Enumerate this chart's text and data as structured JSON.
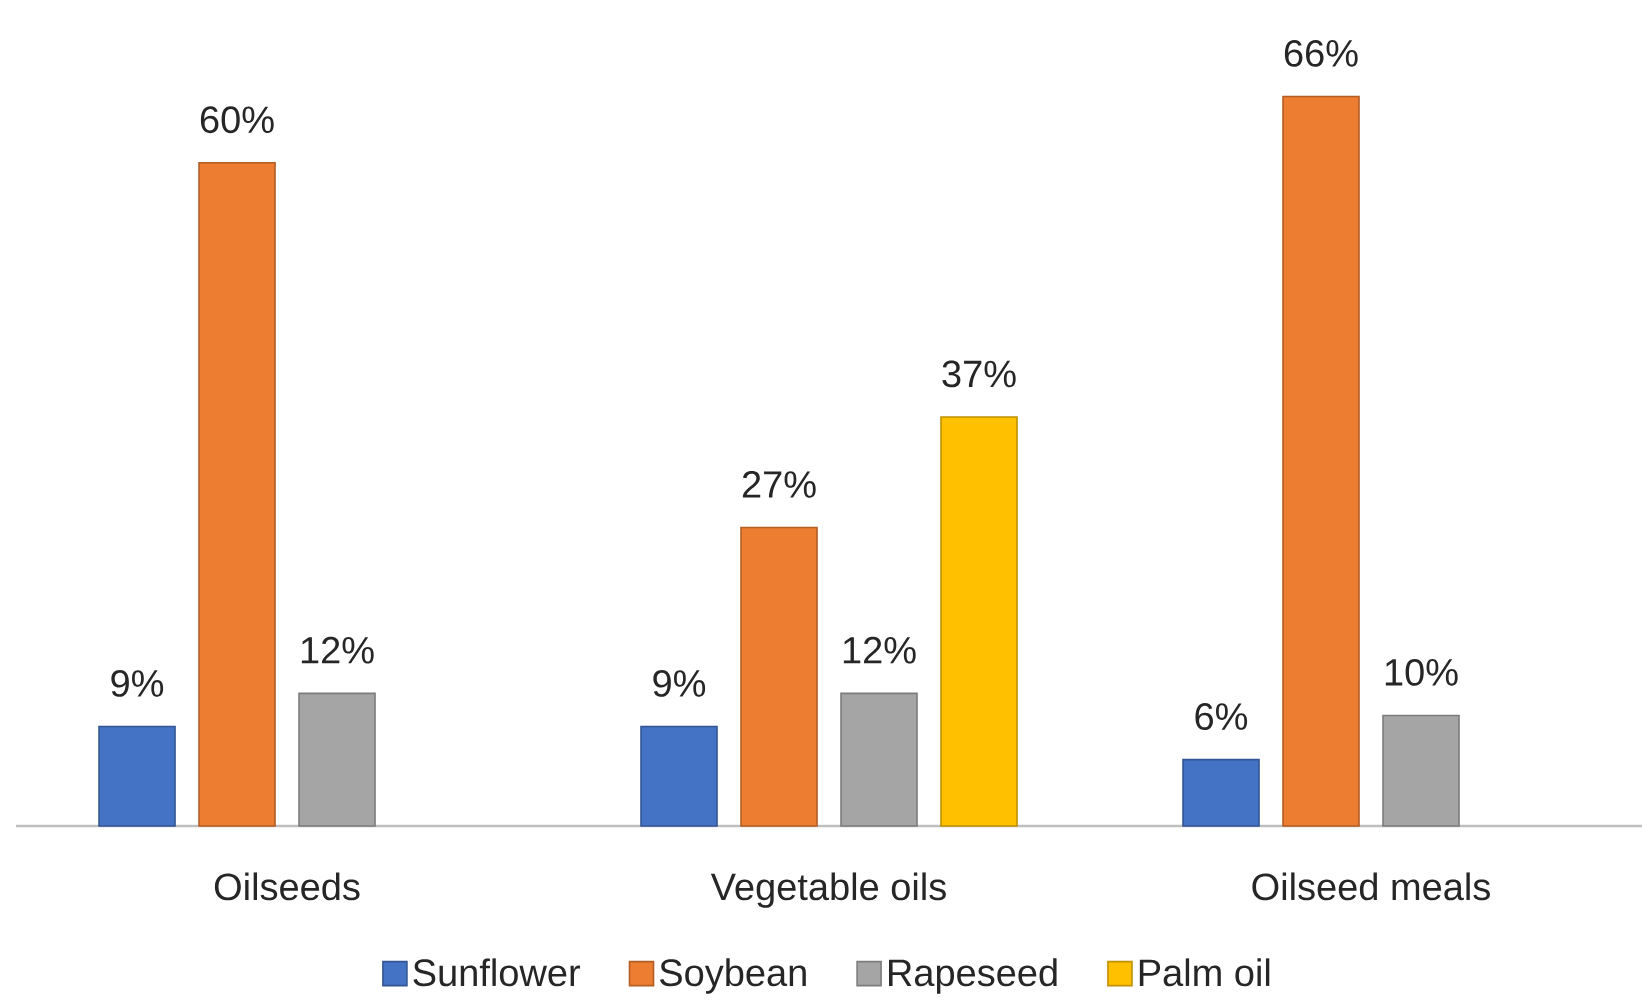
{
  "chart_data": {
    "type": "bar",
    "categories": [
      "Oilseeds",
      "Vegetable oils",
      "Oilseed meals"
    ],
    "series": [
      {
        "name": "Sunflower",
        "color": "#4472c4",
        "values": [
          9,
          9,
          6
        ],
        "value_labels": [
          "9%",
          "9%",
          "6%"
        ]
      },
      {
        "name": "Soybean",
        "color": "#ed7d31",
        "values": [
          60,
          27,
          66
        ],
        "value_labels": [
          "60%",
          "27%",
          "66%"
        ]
      },
      {
        "name": "Rapeseed",
        "color": "#a5a5a5",
        "values": [
          12,
          12,
          10
        ],
        "value_labels": [
          "12%",
          "12%",
          "10%"
        ]
      },
      {
        "name": "Palm oil",
        "color": "#ffc000",
        "values": [
          null,
          37,
          null
        ],
        "value_labels": [
          null,
          "37%",
          null
        ]
      }
    ],
    "tick_labels": "x",
    "legend": "bottom"
  }
}
